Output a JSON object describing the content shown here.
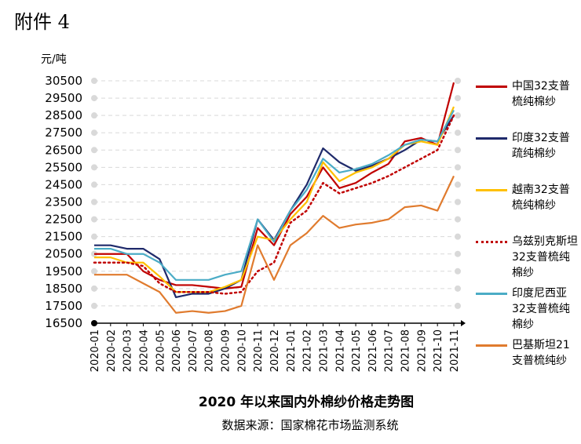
{
  "header": "附件 4",
  "chart_data": {
    "type": "line",
    "title": "2020 年以来国内外棉纱价格走势图",
    "source": "数据来源：国家棉花市场监测系统",
    "y_label": "元/吨",
    "categories": [
      "2020-01",
      "2020-02",
      "2020-03",
      "2020-04",
      "2020-05",
      "2020-06",
      "2020-07",
      "2020-08",
      "2020-09",
      "2020-10",
      "2020-11",
      "2020-12",
      "2021-01",
      "2021-02",
      "2021-03",
      "2021-04",
      "2021-05",
      "2021-06",
      "2021-07",
      "2021-08",
      "2021-09",
      "2021-10",
      "2021-11"
    ],
    "ylim": [
      16500,
      30500
    ],
    "yticks": [
      16500,
      17500,
      18500,
      19500,
      20500,
      21500,
      22500,
      23500,
      24500,
      25500,
      26500,
      27500,
      28500,
      29500,
      30500
    ],
    "grid": true,
    "legend": "right",
    "series": [
      {
        "name": "中国32支普梳纯棉纱",
        "color": "#c00000",
        "line_style": "solid",
        "values": [
          20500,
          20500,
          20500,
          19500,
          19000,
          18700,
          18700,
          18600,
          18500,
          18600,
          22000,
          21000,
          22800,
          23800,
          25500,
          24300,
          24600,
          25200,
          25700,
          27000,
          27200,
          26800,
          30400
        ]
      },
      {
        "name": "印度32支普疏纯棉纱",
        "color": "#1f2a6b",
        "line_style": "solid",
        "values": [
          21000,
          21000,
          20800,
          20800,
          20200,
          18000,
          18200,
          18200,
          18500,
          19000,
          22500,
          21300,
          23000,
          24500,
          26600,
          25800,
          25300,
          25600,
          26000,
          26500,
          27100,
          27000,
          28500
        ]
      },
      {
        "name": "越南32支普梳纯棉纱",
        "color": "#ffc000",
        "line_style": "solid",
        "values": [
          20300,
          20300,
          20000,
          20000,
          19200,
          18300,
          18300,
          18300,
          18600,
          19000,
          21500,
          21300,
          22500,
          23500,
          25800,
          24700,
          25200,
          25500,
          26000,
          26800,
          27000,
          26800,
          29000
        ]
      },
      {
        "name": "乌兹别克斯坦32支普梳纯棉纱",
        "color": "#c00000",
        "line_style": "dotted",
        "values": [
          20000,
          20000,
          20000,
          19800,
          18800,
          18300,
          18300,
          18300,
          18200,
          18300,
          19500,
          20000,
          22300,
          23000,
          24600,
          24000,
          24300,
          24600,
          25000,
          25500,
          26000,
          26500,
          28500
        ]
      },
      {
        "name": "印度尼西亚32支普梳纯棉纱",
        "color": "#4bacc6",
        "line_style": "solid",
        "values": [
          20800,
          20800,
          20500,
          20500,
          20000,
          19000,
          19000,
          19000,
          19300,
          19500,
          22500,
          21200,
          23000,
          24200,
          26000,
          25200,
          25400,
          25700,
          26200,
          26800,
          27100,
          27000,
          28800
        ]
      },
      {
        "name": "巴基斯坦21支普梳纯纱",
        "color": "#e07b2e",
        "line_style": "solid",
        "values": [
          19300,
          19300,
          19300,
          18800,
          18300,
          17100,
          17200,
          17100,
          17200,
          17500,
          21000,
          19000,
          21000,
          21700,
          22700,
          22000,
          22200,
          22300,
          22500,
          23200,
          23300,
          23000,
          25000
        ]
      }
    ]
  }
}
